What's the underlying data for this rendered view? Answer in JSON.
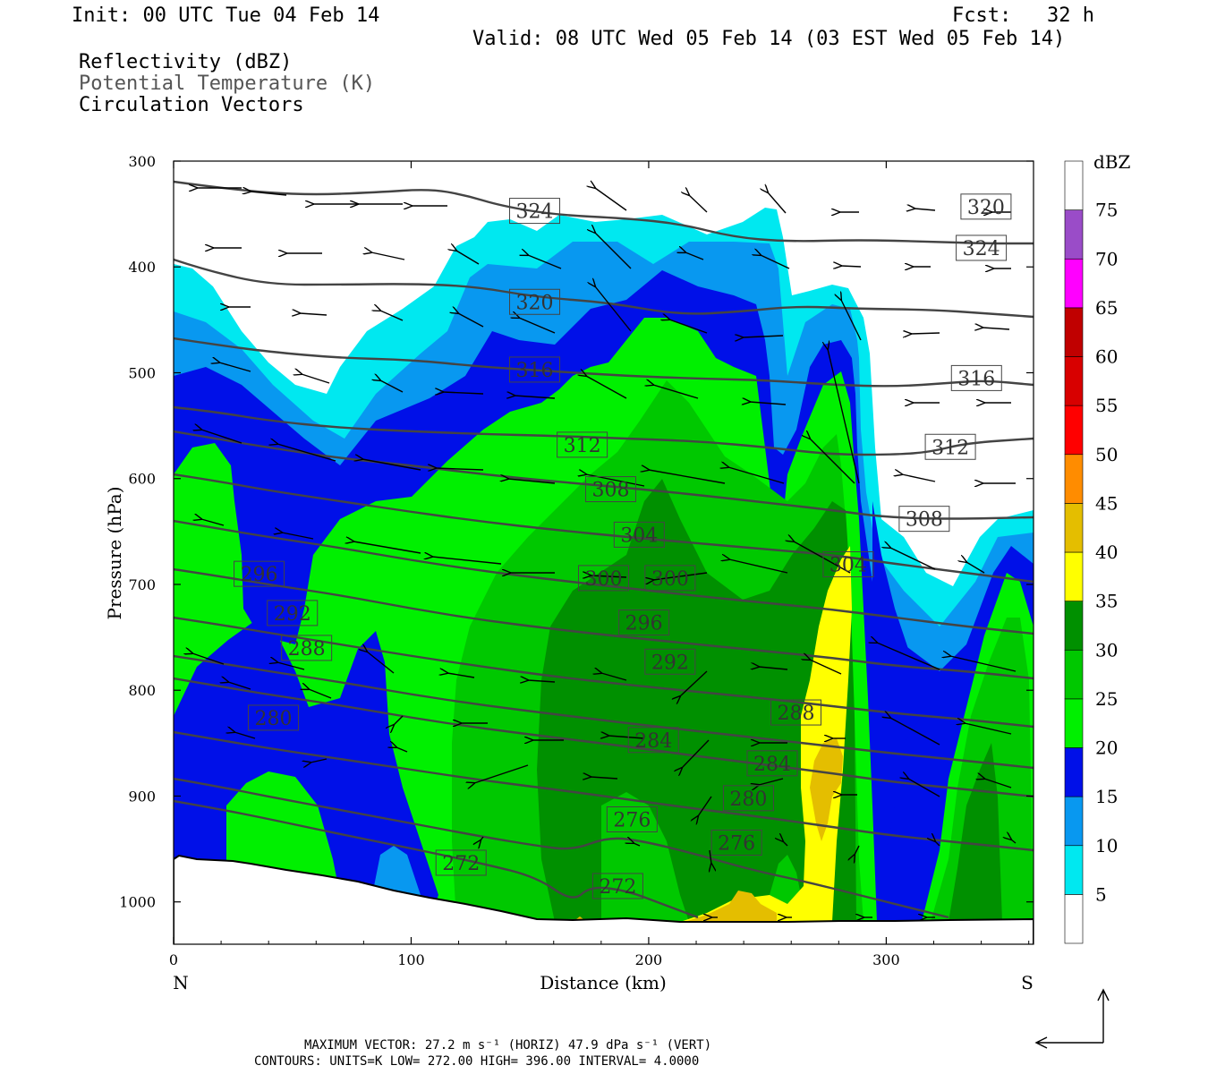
{
  "header": {
    "init": "Init: 00 UTC Tue 04 Feb 14",
    "fcst": "Fcst:   32 h",
    "valid": "Valid: 08 UTC Wed 05 Feb 14 (03 EST Wed 05 Feb 14)",
    "fields": [
      "Reflectivity (dBZ)",
      "Potential Temperature (K)",
      "Circulation Vectors"
    ]
  },
  "footer": {
    "line1": "MAXIMUM VECTOR:  27.2 m s⁻¹ (HORIZ)        47.9 dPa s⁻¹ (VERT)",
    "line2": "CONTOURS:  UNITS=K  LOW=  272.00       HIGH=  396.00       INTERVAL=    4.0000"
  },
  "colors": {
    "dbz_5": "#00e8f0",
    "dbz_10": "#0898f0",
    "dbz_15": "#0010e8",
    "dbz_20": "#00f000",
    "dbz_25": "#00c800",
    "dbz_30": "#009000",
    "dbz_35": "#ffff00",
    "dbz_40": "#e4be00",
    "dbz_45": "#ff8c00",
    "dbz_50": "#ff0000",
    "dbz_55": "#d80000",
    "dbz_60": "#c00000",
    "dbz_65": "#ff00ff",
    "dbz_70": "#9a4cc8",
    "contour": "#444444"
  },
  "chart_data": {
    "type": "cross-section",
    "xlabel": "Distance (km)",
    "ylabel": "Pressure (hPa)",
    "xlim": [
      0,
      362
    ],
    "ylim": [
      1040,
      300
    ],
    "x_ticks": [
      "0",
      "100",
      "200",
      "300"
    ],
    "y_ticks": [
      "300",
      "400",
      "500",
      "600",
      "700",
      "800",
      "900",
      "1000"
    ],
    "end_labels": [
      "N",
      "S"
    ],
    "colorbar": {
      "title": "dBZ",
      "labels": [
        "5",
        "10",
        "15",
        "20",
        "25",
        "30",
        "35",
        "40",
        "45",
        "50",
        "55",
        "60",
        "65",
        "70",
        "75"
      ]
    },
    "contour_labels": [
      {
        "text": "324",
        "x": 152,
        "p": 347
      },
      {
        "text": "324",
        "x": 340,
        "p": 382
      },
      {
        "text": "320",
        "x": 152,
        "p": 433
      },
      {
        "text": "320",
        "x": 342,
        "p": 343
      },
      {
        "text": "316",
        "x": 152,
        "p": 497
      },
      {
        "text": "316",
        "x": 338,
        "p": 505
      },
      {
        "text": "312",
        "x": 172,
        "p": 568
      },
      {
        "text": "312",
        "x": 327,
        "p": 570
      },
      {
        "text": "308",
        "x": 184,
        "p": 610
      },
      {
        "text": "308",
        "x": 316,
        "p": 638
      },
      {
        "text": "304",
        "x": 196,
        "p": 653
      },
      {
        "text": "304",
        "x": 284,
        "p": 681
      },
      {
        "text": "300",
        "x": 181,
        "p": 694
      },
      {
        "text": "300",
        "x": 209,
        "p": 694
      },
      {
        "text": "296",
        "x": 36,
        "p": 690
      },
      {
        "text": "296",
        "x": 198,
        "p": 736
      },
      {
        "text": "292",
        "x": 50,
        "p": 727
      },
      {
        "text": "292",
        "x": 209,
        "p": 773
      },
      {
        "text": "288",
        "x": 56,
        "p": 760
      },
      {
        "text": "288",
        "x": 262,
        "p": 821
      },
      {
        "text": "280",
        "x": 42,
        "p": 826
      },
      {
        "text": "284",
        "x": 202,
        "p": 847
      },
      {
        "text": "284",
        "x": 252,
        "p": 869
      },
      {
        "text": "280",
        "x": 242,
        "p": 902
      },
      {
        "text": "276",
        "x": 193,
        "p": 922
      },
      {
        "text": "276",
        "x": 237,
        "p": 944
      },
      {
        "text": "272",
        "x": 121,
        "p": 963
      },
      {
        "text": "272",
        "x": 187,
        "p": 985
      }
    ]
  }
}
